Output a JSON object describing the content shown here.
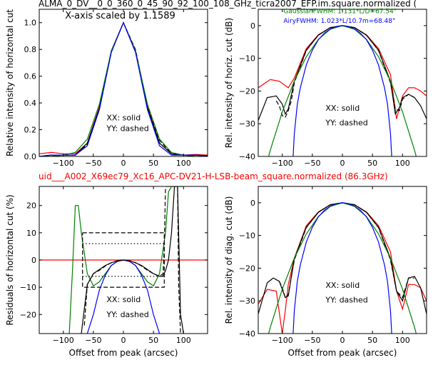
{
  "header": {
    "top_title": "ALMA_0_DV__0_0_360_0_45_90_92_100_108_GHz_ticra2007_EFP.im.square.normalized (",
    "mid_title": "uid___A002_X69ec79_Xc16_APC-DV21-H-LSB-beam_square.normalized (86.3GHz)",
    "colors": {
      "top_title": "#000000",
      "mid_title": "#ff0000"
    }
  },
  "chart_data": [
    {
      "id": "p1",
      "type": "line",
      "title": "",
      "xlabel": "",
      "ylabel": "Relative intensity of horizontal cut",
      "xlim": [
        -140,
        140
      ],
      "ylim": [
        0.0,
        1.1
      ],
      "xticks": [
        -100,
        -50,
        0,
        50,
        100
      ],
      "yticks": [
        0.0,
        0.2,
        0.4,
        0.6,
        0.8,
        1.0
      ],
      "ytick_labels": [
        "0.0",
        "0.2",
        "0.4",
        "0.6",
        "0.8",
        "1.0"
      ],
      "annotations": [
        {
          "text": "X-axis scaled by 1.1589",
          "x": -97,
          "y": 1.03
        },
        {
          "text": "XX: solid",
          "x": -28,
          "y": 0.27
        },
        {
          "text": "YY: dashed",
          "x": -28,
          "y": 0.19
        }
      ],
      "series": [
        {
          "color": "#ff0000",
          "style": "solid",
          "x": [
            -140,
            -120,
            -100,
            -80,
            -60,
            -40,
            -20,
            0,
            20,
            40,
            60,
            80,
            100,
            120,
            140
          ],
          "y": [
            0.02,
            0.03,
            0.02,
            0.02,
            0.1,
            0.37,
            0.78,
            1.0,
            0.78,
            0.37,
            0.1,
            0.02,
            0.01,
            0.015,
            0.01
          ]
        },
        {
          "color": "#000000",
          "style": "solid",
          "x": [
            -140,
            -120,
            -100,
            -80,
            -60,
            -40,
            -20,
            0,
            20,
            40,
            60,
            80,
            100,
            120,
            140
          ],
          "y": [
            0.0,
            0.01,
            0.01,
            0.01,
            0.1,
            0.36,
            0.79,
            1.0,
            0.79,
            0.36,
            0.1,
            0.02,
            0.01,
            0.01,
            0.005
          ]
        },
        {
          "color": "#000000",
          "style": "dashed",
          "x": [
            -140,
            -120,
            -100,
            -80,
            -60,
            -40,
            -20,
            0,
            20,
            40,
            60,
            80,
            100,
            120,
            140
          ],
          "y": [
            0.0,
            0.01,
            0.01,
            0.01,
            0.09,
            0.35,
            0.78,
            1.0,
            0.8,
            0.38,
            0.12,
            0.02,
            0.01,
            0.01,
            0.005
          ]
        },
        {
          "color": "#008000",
          "style": "solid",
          "x": [
            -140,
            -120,
            -100,
            -80,
            -60,
            -40,
            -20,
            0,
            20,
            40,
            60,
            80,
            100,
            120,
            140
          ],
          "y": [
            0.0,
            0.0,
            0.01,
            0.03,
            0.13,
            0.39,
            0.79,
            1.0,
            0.79,
            0.39,
            0.13,
            0.03,
            0.01,
            0.0,
            0.0
          ]
        },
        {
          "color": "#0000ff",
          "style": "solid",
          "x": [
            -140,
            -120,
            -100,
            -80,
            -60,
            -40,
            -20,
            0,
            20,
            40,
            60,
            80,
            100,
            120,
            140
          ],
          "y": [
            0.0,
            0.01,
            0.01,
            0.01,
            0.08,
            0.35,
            0.78,
            1.0,
            0.78,
            0.35,
            0.08,
            0.01,
            0.01,
            0.01,
            0.0
          ]
        }
      ]
    },
    {
      "id": "p2",
      "type": "line",
      "title": "",
      "xlabel": "",
      "ylabel": "Rel. intensity of horiz. cut (dB)",
      "xlim": [
        -140,
        140
      ],
      "ylim": [
        -40,
        5
      ],
      "xticks": [
        -100,
        -50,
        0,
        50,
        100
      ],
      "yticks": [
        -40,
        -30,
        -20,
        -10,
        0
      ],
      "ytick_labels": [
        "−40",
        "−30",
        "−20",
        "−10",
        "0"
      ],
      "annotations": [
        {
          "text": "GaussianFWHM: 1.131*L/D=67.54\"",
          "x": -98,
          "y": 3.8,
          "color": "#008000",
          "size": 9
        },
        {
          "text": "AiryFWHM: 1.023*L/10.7m=68.48\"",
          "x": -98,
          "y": 0.8,
          "color": "#0000ff",
          "size": 9
        },
        {
          "text": "XX: solid",
          "x": -28,
          "y": -26,
          "color": "#000000",
          "size": 11
        },
        {
          "text": "YY: dashed",
          "x": -28,
          "y": -30.5,
          "color": "#000000",
          "size": 11
        }
      ],
      "series": [
        {
          "color": "#ff0000",
          "style": "solid",
          "x": [
            -140,
            -120,
            -105,
            -90,
            -80,
            -60,
            -40,
            -20,
            0,
            20,
            40,
            60,
            80,
            90,
            100,
            110,
            120,
            130,
            140
          ],
          "y": [
            -19,
            -16.5,
            -17,
            -19,
            -16,
            -7,
            -2.8,
            -0.6,
            0,
            -0.6,
            -2.8,
            -7,
            -15,
            -28.5,
            -21.5,
            -19,
            -19,
            -20,
            -21.5
          ]
        },
        {
          "color": "#000000",
          "style": "solid",
          "x": [
            -140,
            -125,
            -110,
            -100,
            -95,
            -90,
            -80,
            -60,
            -40,
            -20,
            0,
            20,
            40,
            60,
            80,
            88,
            95,
            100,
            110,
            120,
            130,
            140
          ],
          "y": [
            -29,
            -22,
            -21.5,
            -24,
            -27,
            -25.5,
            -17,
            -7.5,
            -2.9,
            -0.6,
            0,
            -0.6,
            -2.9,
            -7.5,
            -17,
            -27,
            -25,
            -22,
            -21,
            -22,
            -24.5,
            -28.5
          ]
        },
        {
          "color": "#000000",
          "style": "dashed",
          "x": [
            -110,
            -105,
            -100,
            -95,
            -90,
            -85,
            -80,
            -60,
            -40,
            -20,
            0,
            20,
            40,
            60,
            80,
            88,
            95,
            100,
            110,
            120
          ],
          "y": [
            -23,
            -24.5,
            -27.5,
            -28,
            -26,
            -23,
            -17.5,
            -7.6,
            -2.9,
            -0.6,
            0,
            -0.6,
            -2.9,
            -7.6,
            -17.5,
            -25.5,
            -26,
            -22.5,
            -21,
            -22
          ]
        },
        {
          "color": "#008000",
          "style": "solid",
          "x": [
            -140,
            -120,
            -100,
            -80,
            -60,
            -40,
            -20,
            0,
            20,
            40,
            60,
            80,
            100,
            120,
            140
          ],
          "y": [
            -51.9,
            -38.1,
            -26.4,
            -16.9,
            -9.5,
            -4.2,
            -1.1,
            0,
            -1.1,
            -4.2,
            -9.5,
            -16.9,
            -26.4,
            -38.1,
            -51.9
          ]
        },
        {
          "color": "#0000ff",
          "style": "solid",
          "x": [
            -82,
            -80,
            -75,
            -70,
            -60,
            -50,
            -40,
            -30,
            -20,
            -10,
            0,
            10,
            20,
            30,
            40,
            50,
            60,
            70,
            75,
            80,
            82
          ],
          "y": [
            -40,
            -33,
            -24,
            -19,
            -12,
            -7.5,
            -4.3,
            -2.3,
            -1,
            -0.25,
            0,
            -0.25,
            -1,
            -2.3,
            -4.3,
            -7.5,
            -12,
            -19,
            -24,
            -33,
            -40
          ]
        }
      ]
    },
    {
      "id": "p3",
      "type": "line",
      "title": "",
      "xlabel": "Offset from peak (arcsec)",
      "ylabel": "Residuals of horizontal cut (%)",
      "xlim": [
        -140,
        140
      ],
      "ylim": [
        -27,
        27
      ],
      "xticks": [
        -100,
        -50,
        0,
        50,
        100
      ],
      "xtick_labels": [
        "−100",
        "−50",
        "0",
        "50",
        "100"
      ],
      "yticks": [
        -20,
        -10,
        0,
        10,
        20
      ],
      "ytick_labels": [
        "−20",
        "−10",
        "0",
        "10",
        "20"
      ],
      "annotations": [
        {
          "text": "XX: solid",
          "x": -28,
          "y": -15.5
        },
        {
          "text": "YY: dashed",
          "x": -28,
          "y": -21
        }
      ],
      "series": [
        {
          "color": "#ff0000",
          "style": "solid",
          "x": [
            -140,
            140
          ],
          "y": [
            0,
            0
          ]
        },
        {
          "color": "#008000",
          "style": "solid",
          "x": [
            -90,
            -85,
            -80,
            -75,
            -70,
            -60,
            -50,
            -40,
            -30,
            -20,
            -10,
            0,
            10,
            20,
            30,
            40,
            50,
            60,
            70,
            75,
            80,
            85,
            90,
            95,
            100
          ],
          "y": [
            -27,
            -5,
            20,
            20,
            10,
            -5,
            -9.5,
            -8,
            -5,
            -2,
            -0.5,
            0,
            -0.5,
            -2,
            -5,
            -8,
            -9.5,
            -5,
            10,
            25,
            27,
            27,
            27,
            27,
            27
          ]
        },
        {
          "color": "#0000ff",
          "style": "solid",
          "x": [
            -60,
            -50,
            -40,
            -30,
            -20,
            -10,
            0,
            10,
            20,
            30,
            40,
            50,
            60
          ],
          "y": [
            -27,
            -20,
            -11,
            -5.5,
            -2,
            -0.5,
            0,
            -0.5,
            -2,
            -5.5,
            -11,
            -20,
            -27
          ]
        },
        {
          "color": "#000000",
          "style": "solid",
          "x": [
            -70,
            -65,
            -60,
            -50,
            -40,
            -30,
            -20,
            -10,
            0,
            10,
            20,
            30,
            40,
            50,
            60,
            65,
            70,
            75,
            80,
            85,
            90,
            95,
            100
          ],
          "y": [
            -27,
            -18,
            -9,
            -5,
            -3.5,
            -2,
            -1,
            -0.3,
            0,
            -0.3,
            -1,
            -2,
            -3.5,
            -5,
            -6,
            -6,
            -4,
            0,
            10,
            27,
            27,
            -20,
            -27
          ]
        },
        {
          "color": "#000000",
          "style": "dashed",
          "x": [
            -65,
            -60,
            -50,
            -40,
            -30,
            -20,
            -10,
            0,
            10,
            20,
            30,
            40,
            50,
            60,
            66,
            68,
            70,
            90,
            92,
            95,
            98
          ],
          "y": [
            -24,
            -9,
            -5,
            -3.8,
            -2.2,
            -1,
            -0.3,
            0,
            -0.3,
            -1,
            -2.2,
            -3.8,
            -5,
            -6,
            -5,
            5,
            27,
            27,
            -10,
            -27,
            -27
          ]
        },
        {
          "color": "#000000",
          "style": "dashed",
          "x": [
            -68,
            68,
            68,
            -68,
            -68
          ],
          "y": [
            10,
            10,
            -10,
            -10,
            10
          ]
        },
        {
          "color": "#000000",
          "style": "dotted",
          "x": [
            -68,
            68
          ],
          "y": [
            6,
            6
          ]
        },
        {
          "color": "#000000",
          "style": "dotted",
          "x": [
            -68,
            68
          ],
          "y": [
            -6,
            -6
          ]
        }
      ]
    },
    {
      "id": "p4",
      "type": "line",
      "title": "",
      "xlabel": "Offset from peak (arcsec)",
      "ylabel": "Rel. intensity of diag. cut (dB)",
      "xlim": [
        -140,
        140
      ],
      "ylim": [
        -40,
        5
      ],
      "xticks": [
        -100,
        -50,
        0,
        50,
        100
      ],
      "xtick_labels": [
        "−100",
        "−50",
        "0",
        "50",
        "100"
      ],
      "yticks": [
        -40,
        -30,
        -20,
        -10,
        0
      ],
      "ytick_labels": [
        "−40",
        "−30",
        "−20",
        "−10",
        "0"
      ],
      "annotations": [
        {
          "text": "XX: solid",
          "x": -28,
          "y": -26
        },
        {
          "text": "YY: dashed",
          "x": -28,
          "y": -30.5
        }
      ],
      "series": [
        {
          "color": "#ff0000",
          "style": "solid",
          "x": [
            -140,
            -125,
            -110,
            -100,
            -95,
            -90,
            -80,
            -60,
            -40,
            -20,
            0,
            20,
            40,
            60,
            80,
            90,
            100,
            110,
            120,
            130,
            140
          ],
          "y": [
            -31,
            -26.5,
            -27,
            -40,
            -33,
            -25,
            -17,
            -7,
            -2.8,
            -0.6,
            0,
            -0.6,
            -2.8,
            -7,
            -15,
            -27,
            -32.5,
            -25,
            -25,
            -26,
            -30
          ]
        },
        {
          "color": "#000000",
          "style": "solid",
          "x": [
            -140,
            -125,
            -115,
            -105,
            -95,
            -90,
            -80,
            -60,
            -40,
            -20,
            0,
            20,
            40,
            60,
            80,
            90,
            100,
            110,
            120,
            130,
            140
          ],
          "y": [
            -34,
            -24.5,
            -23,
            -24,
            -29,
            -28.5,
            -17,
            -7.5,
            -2.9,
            -0.6,
            0,
            -0.6,
            -2.9,
            -7.5,
            -17,
            -27,
            -30,
            -23,
            -22.5,
            -26,
            -34
          ]
        },
        {
          "color": "#000000",
          "style": "dashed",
          "x": [
            -105,
            -100,
            -95,
            -90,
            -80,
            -60,
            -40,
            -20,
            0,
            20,
            40,
            60,
            80,
            90,
            100,
            110,
            120
          ],
          "y": [
            -24,
            -26,
            -29,
            -28,
            -17.5,
            -7.6,
            -2.9,
            -0.6,
            0,
            -0.6,
            -2.9,
            -7.6,
            -17.5,
            -27,
            -29,
            -23,
            -23
          ]
        },
        {
          "color": "#008000",
          "style": "solid",
          "x": [
            -140,
            -120,
            -100,
            -80,
            -60,
            -40,
            -20,
            0,
            20,
            40,
            60,
            80,
            100,
            120,
            140
          ],
          "y": [
            -51.9,
            -38.1,
            -26.4,
            -16.9,
            -9.5,
            -4.2,
            -1.1,
            0,
            -1.1,
            -4.2,
            -9.5,
            -16.9,
            -26.4,
            -38.1,
            -51.9
          ]
        },
        {
          "color": "#0000ff",
          "style": "solid",
          "x": [
            -82,
            -80,
            -75,
            -70,
            -60,
            -50,
            -40,
            -30,
            -20,
            -10,
            0,
            10,
            20,
            30,
            40,
            50,
            60,
            70,
            75,
            80,
            82
          ],
          "y": [
            -40,
            -33,
            -24,
            -19,
            -12,
            -7.5,
            -4.3,
            -2.3,
            -1,
            -0.25,
            0,
            -0.25,
            -1,
            -2.3,
            -4.3,
            -7.5,
            -12,
            -19,
            -24,
            -33,
            -40
          ]
        }
      ]
    }
  ]
}
